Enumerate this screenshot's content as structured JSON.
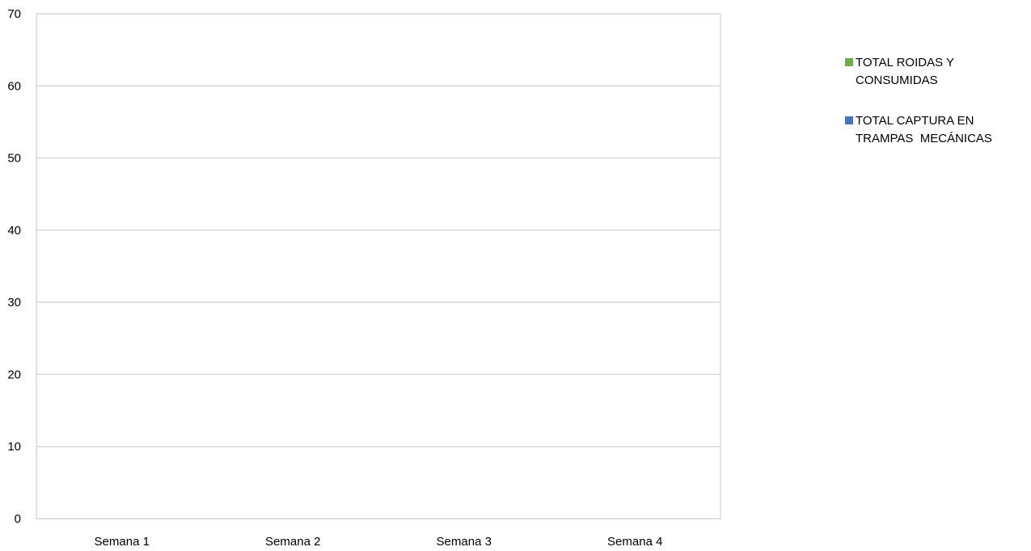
{
  "chart_data": {
    "type": "bar",
    "categories": [
      "Semana 1",
      "Semana 2",
      "Semana 3",
      "Semana 4"
    ],
    "series": [
      {
        "name": "TOTAL ROIDAS Y CONSUMIDAS",
        "values": [
          0,
          0,
          0,
          0
        ],
        "color": "#70AD47"
      },
      {
        "name": "TOTAL CAPTURA EN TRAMPAS  MECÁNICAS",
        "values": [
          0,
          0,
          0,
          0
        ],
        "color": "#4472C4"
      }
    ],
    "y_ticks": [
      "0",
      "10",
      "20",
      "30",
      "40",
      "50",
      "60",
      "70"
    ],
    "ylim": [
      0,
      70
    ],
    "grid": true,
    "legend_position": "right",
    "title": "",
    "xlabel": "",
    "ylabel": ""
  }
}
